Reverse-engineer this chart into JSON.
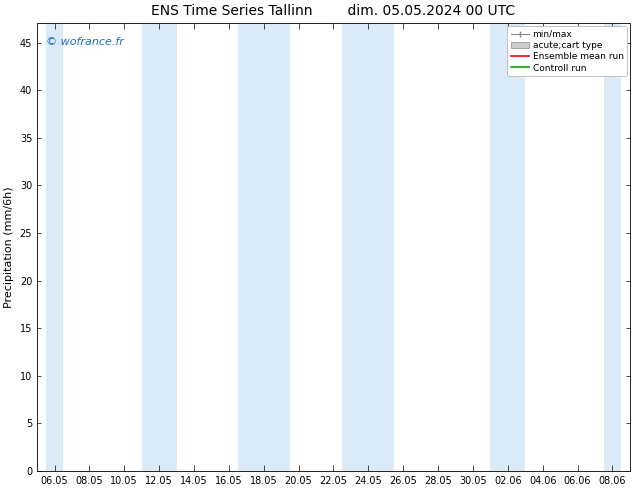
{
  "title1": "ENS Time Series Tallinn",
  "title2": "dim. 05.05.2024 00 UTC",
  "ylabel": "Precipitation (mm/6h)",
  "bg_color": "#ffffff",
  "plot_bg_color": "#ffffff",
  "ylim": [
    0,
    47
  ],
  "yticks": [
    0,
    5,
    10,
    15,
    20,
    25,
    30,
    35,
    40,
    45
  ],
  "xtick_labels": [
    "06.05",
    "08.05",
    "10.05",
    "12.05",
    "14.05",
    "16.05",
    "18.05",
    "20.05",
    "22.05",
    "24.05",
    "26.05",
    "28.05",
    "30.05",
    "02.06",
    "04.06",
    "06.06",
    "08.06"
  ],
  "shade_color": "#daeaf7",
  "watermark": "© wofrance.fr",
  "watermark_color": "#1a6fbb",
  "legend_labels": [
    "min/max",
    "acute;cart type",
    "Ensemble mean run",
    "Controll run"
  ],
  "title_fontsize": 10,
  "ylabel_fontsize": 8,
  "tick_fontsize": 7,
  "watermark_fontsize": 8
}
